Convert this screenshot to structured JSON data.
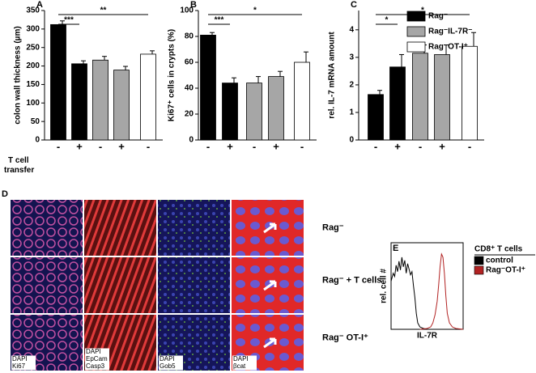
{
  "chart_data": [
    {
      "type": "bar",
      "panel": "A",
      "ylabel": "colon wall thickness (µm)",
      "categories": [
        "-",
        "+",
        "-",
        "+",
        "-"
      ],
      "values": [
        312,
        206,
        216,
        189,
        232
      ],
      "errors": [
        10,
        8,
        10,
        10,
        9
      ],
      "colors": [
        "#000000",
        "#000000",
        "#a6a6a6",
        "#a6a6a6",
        "#ffffff"
      ],
      "ylim": [
        0,
        350
      ],
      "yticks": [
        0,
        50,
        100,
        150,
        200,
        250,
        300,
        350
      ],
      "annotations": [
        "***",
        "**"
      ],
      "xlabel": "T cell transfer"
    },
    {
      "type": "bar",
      "panel": "B",
      "ylabel": "Ki67⁺ cells in crypts (%)",
      "categories": [
        "-",
        "+",
        "-",
        "+",
        "-"
      ],
      "values": [
        81,
        44,
        44,
        49,
        60
      ],
      "errors": [
        2,
        4,
        5,
        4,
        8
      ],
      "colors": [
        "#000000",
        "#000000",
        "#a6a6a6",
        "#a6a6a6",
        "#ffffff"
      ],
      "ylim": [
        0,
        100
      ],
      "yticks": [
        0,
        20,
        40,
        60,
        80,
        100
      ],
      "annotations": [
        "***",
        "*"
      ]
    },
    {
      "type": "bar",
      "panel": "C",
      "ylabel": "rel. IL-7 mRNA amount",
      "categories": [
        "-",
        "+",
        "-",
        "+",
        "-"
      ],
      "values": [
        1.65,
        2.65,
        3.15,
        3.1,
        3.4
      ],
      "errors": [
        0.15,
        0.45,
        0.3,
        0.35,
        0.5
      ],
      "colors": [
        "#000000",
        "#000000",
        "#a6a6a6",
        "#a6a6a6",
        "#ffffff"
      ],
      "ylim": [
        0,
        4.7
      ],
      "yticks": [
        0,
        1,
        2,
        3,
        4
      ],
      "annotations": [
        "*",
        "*"
      ]
    },
    {
      "type": "line",
      "panel": "E",
      "ylabel": "rel. cell #",
      "xlabel": "IL-7R",
      "legend_title": "CD8⁺ T cells",
      "xlim": [
        0,
        100
      ],
      "ylim": [
        0,
        100
      ],
      "series": [
        {
          "name": "control",
          "color": "#000000",
          "x": [
            0,
            3,
            5,
            7,
            9,
            11,
            13,
            15,
            17,
            19,
            21,
            23,
            25,
            27,
            29,
            31,
            33,
            35,
            37,
            40,
            45,
            50
          ],
          "values": [
            60,
            70,
            66,
            80,
            72,
            85,
            74,
            90,
            78,
            86,
            70,
            82,
            75,
            68,
            72,
            55,
            40,
            20,
            8,
            3,
            1,
            0
          ]
        },
        {
          "name": "Rag⁻OT-I⁺",
          "color": "#b22222",
          "x": [
            40,
            50,
            55,
            58,
            61,
            64,
            66,
            68,
            70,
            72,
            74,
            76,
            78,
            81,
            85,
            90,
            100
          ],
          "values": [
            0,
            1,
            3,
            8,
            18,
            35,
            55,
            78,
            94,
            90,
            70,
            42,
            20,
            8,
            3,
            1,
            0
          ]
        }
      ]
    }
  ],
  "legend": [
    {
      "name": "Rag⁻",
      "color": "#000000"
    },
    {
      "name": "Rag⁻IL-7R⁻",
      "color": "#a6a6a6"
    },
    {
      "name": "Rag⁻OT-I⁺",
      "color": "#ffffff"
    }
  ],
  "panel_d": {
    "label": "D",
    "rows": [
      "Rag⁻",
      "Rag⁻ + T cells",
      "Rag⁻ OT-I⁺"
    ],
    "stains": [
      [
        "DAPI",
        "Ki67"
      ],
      [
        "DAPI",
        "EpCam",
        "Casp3"
      ],
      [
        "DAPI",
        "Gob5"
      ],
      [
        "DAPI",
        "βcat"
      ]
    ]
  }
}
